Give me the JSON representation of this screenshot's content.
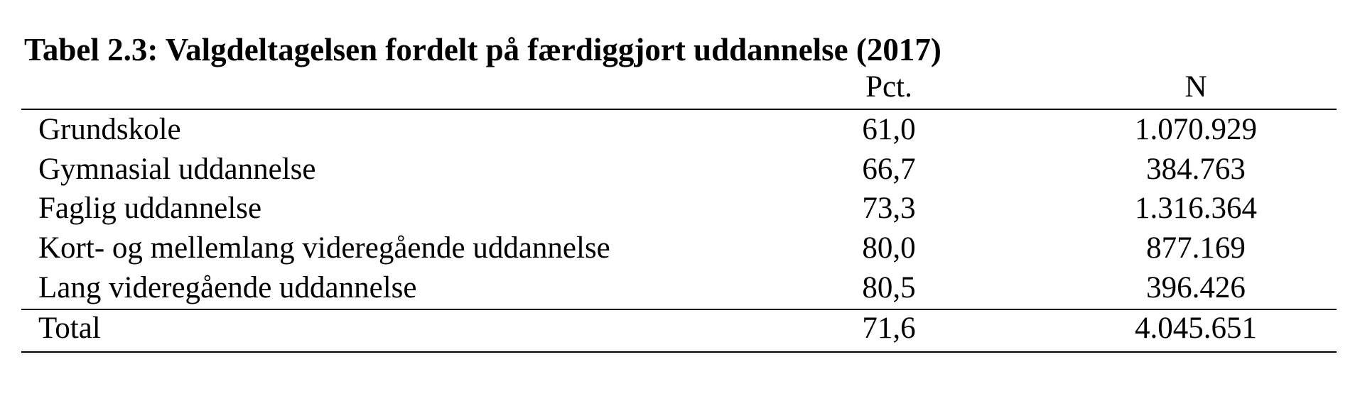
{
  "title": "Tabel 2.3: Valgdeltagelsen fordelt på færdiggjort uddannelse (2017)",
  "table": {
    "header": [
      "",
      "Pct.",
      "N"
    ],
    "rows": [
      [
        "Grundskole",
        "61,0",
        "1.070.929"
      ],
      [
        "Gymnasial uddannelse",
        "66,7",
        "384.763"
      ],
      [
        "Faglig uddannelse",
        "73,3",
        "1.316.364"
      ],
      [
        "Kort- og mellemlang videregående uddannelse",
        "80,0",
        "877.169"
      ],
      [
        "Lang videregående uddannelse",
        "80,5",
        "396.426"
      ]
    ],
    "total": [
      "Total",
      "71,6",
      "4.045.651"
    ]
  }
}
